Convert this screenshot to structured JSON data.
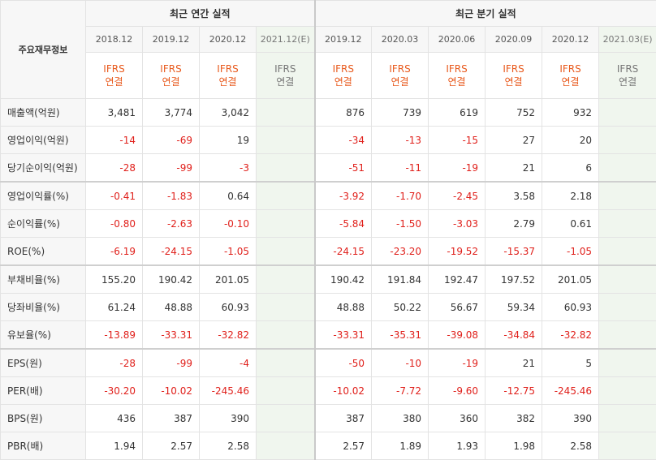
{
  "header": {
    "row_label": "주요재무정보",
    "annual_title": "최근 연간 실적",
    "quarterly_title": "최근 분기 실적"
  },
  "annual_periods": [
    "2018.12",
    "2019.12",
    "2020.12",
    "2021.12(E)"
  ],
  "quarterly_periods": [
    "2019.12",
    "2020.03",
    "2020.06",
    "2020.09",
    "2020.12",
    "2021.03(E)"
  ],
  "standard": {
    "line1": "IFRS",
    "line2": "연결"
  },
  "colors": {
    "negative": "#e0201b",
    "standard": "#e8591c",
    "estimate_bg": "#f0f6ee"
  },
  "rows": [
    {
      "label": "매출액(억원)",
      "annual": [
        "3,481",
        "3,774",
        "3,042",
        ""
      ],
      "quarterly": [
        "876",
        "739",
        "619",
        "752",
        "932",
        ""
      ]
    },
    {
      "label": "영업이익(억원)",
      "annual": [
        "-14",
        "-69",
        "19",
        ""
      ],
      "quarterly": [
        "-34",
        "-13",
        "-15",
        "27",
        "20",
        ""
      ]
    },
    {
      "label": "당기순이익(억원)",
      "annual": [
        "-28",
        "-99",
        "-3",
        ""
      ],
      "quarterly": [
        "-51",
        "-11",
        "-19",
        "21",
        "6",
        ""
      ]
    },
    {
      "label": "영업이익률(%)",
      "annual": [
        "-0.41",
        "-1.83",
        "0.64",
        ""
      ],
      "quarterly": [
        "-3.92",
        "-1.70",
        "-2.45",
        "3.58",
        "2.18",
        ""
      ]
    },
    {
      "label": "순이익률(%)",
      "annual": [
        "-0.80",
        "-2.63",
        "-0.10",
        ""
      ],
      "quarterly": [
        "-5.84",
        "-1.50",
        "-3.03",
        "2.79",
        "0.61",
        ""
      ]
    },
    {
      "label": "ROE(%)",
      "annual": [
        "-6.19",
        "-24.15",
        "-1.05",
        ""
      ],
      "quarterly": [
        "-24.15",
        "-23.20",
        "-19.52",
        "-15.37",
        "-1.05",
        ""
      ]
    },
    {
      "label": "부채비율(%)",
      "annual": [
        "155.20",
        "190.42",
        "201.05",
        ""
      ],
      "quarterly": [
        "190.42",
        "191.84",
        "192.47",
        "197.52",
        "201.05",
        ""
      ]
    },
    {
      "label": "당좌비율(%)",
      "annual": [
        "61.24",
        "48.88",
        "60.93",
        ""
      ],
      "quarterly": [
        "48.88",
        "50.22",
        "56.67",
        "59.34",
        "60.93",
        ""
      ]
    },
    {
      "label": "유보율(%)",
      "annual": [
        "-13.89",
        "-33.31",
        "-32.82",
        ""
      ],
      "quarterly": [
        "-33.31",
        "-35.31",
        "-39.08",
        "-34.84",
        "-32.82",
        ""
      ]
    },
    {
      "label": "EPS(원)",
      "annual": [
        "-28",
        "-99",
        "-4",
        ""
      ],
      "quarterly": [
        "-50",
        "-10",
        "-19",
        "21",
        "5",
        ""
      ]
    },
    {
      "label": "PER(배)",
      "annual": [
        "-30.20",
        "-10.02",
        "-245.46",
        ""
      ],
      "quarterly": [
        "-10.02",
        "-7.72",
        "-9.60",
        "-12.75",
        "-245.46",
        ""
      ]
    },
    {
      "label": "BPS(원)",
      "annual": [
        "436",
        "387",
        "390",
        ""
      ],
      "quarterly": [
        "387",
        "380",
        "360",
        "382",
        "390",
        ""
      ]
    },
    {
      "label": "PBR(배)",
      "annual": [
        "1.94",
        "2.57",
        "2.58",
        ""
      ],
      "quarterly": [
        "2.57",
        "1.89",
        "1.93",
        "1.98",
        "2.58",
        ""
      ]
    }
  ]
}
